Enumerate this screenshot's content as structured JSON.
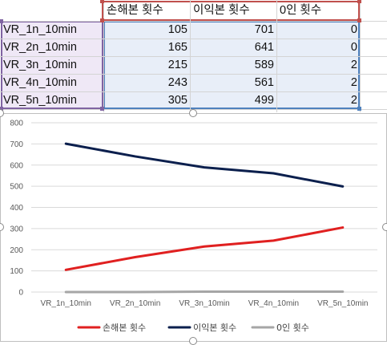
{
  "sheet": {
    "headers": [
      "손해본 횟수",
      "이익본 횟수",
      "0인 횟수"
    ],
    "rows": [
      {
        "label": "VR_1n_10min",
        "values": [
          "105",
          "701",
          "0"
        ]
      },
      {
        "label": "VR_2n_10min",
        "values": [
          "165",
          "641",
          "0"
        ]
      },
      {
        "label": "VR_3n_10min",
        "values": [
          "215",
          "589",
          "2"
        ]
      },
      {
        "label": "VR_4n_10min",
        "values": [
          "243",
          "561",
          "2"
        ]
      },
      {
        "label": "VR_5n_10min",
        "values": [
          "305",
          "499",
          "2"
        ]
      }
    ]
  },
  "chart_data": {
    "type": "line",
    "categories": [
      "VR_1n_10min",
      "VR_2n_10min",
      "VR_3n_10min",
      "VR_4n_10min",
      "VR_5n_10min"
    ],
    "series": [
      {
        "name": "손해본 횟수",
        "values": [
          105,
          165,
          215,
          243,
          305
        ],
        "color": "#e02020"
      },
      {
        "name": "이익본 횟수",
        "values": [
          701,
          641,
          589,
          561,
          499
        ],
        "color": "#0b1f4d"
      },
      {
        "name": "0인 횟수",
        "values": [
          0,
          0,
          2,
          2,
          2
        ],
        "color": "#a6a6a6"
      }
    ],
    "ylim": [
      0,
      800
    ],
    "yticks": [
      "0",
      "100",
      "200",
      "300",
      "400",
      "500",
      "600",
      "700",
      "800"
    ],
    "grid": true,
    "legend": "bottom",
    "title": "",
    "xlabel": "",
    "ylabel": ""
  }
}
